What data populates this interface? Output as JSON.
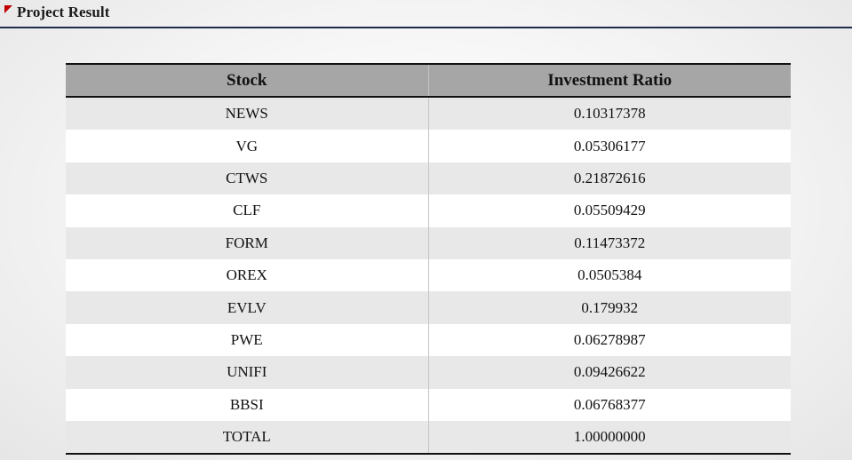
{
  "slide": {
    "title": "Project Result"
  },
  "table": {
    "headers": [
      "Stock",
      "Investment Ratio"
    ],
    "rows": [
      [
        "NEWS",
        "0.10317378"
      ],
      [
        "VG",
        "0.05306177"
      ],
      [
        "CTWS",
        "0.21872616"
      ],
      [
        "CLF",
        "0.05509429"
      ],
      [
        "FORM",
        "0.11473372"
      ],
      [
        "OREX",
        "0.0505384"
      ],
      [
        "EVLV",
        "0.179932"
      ],
      [
        "PWE",
        "0.06278987"
      ],
      [
        "UNIFI",
        "0.09426622"
      ],
      [
        "BBSI",
        "0.06768377"
      ],
      [
        "TOTAL",
        "1.00000000"
      ]
    ]
  },
  "colors": {
    "accent_mark": "#c00000",
    "header_rule": "#1f2d4a",
    "table_header_bg": "#a6a6a6",
    "row_band": "#e8e8e8"
  }
}
